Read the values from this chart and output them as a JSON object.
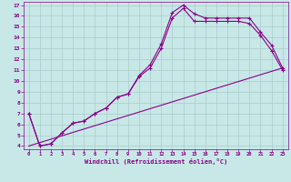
{
  "xlabel": "Windchill (Refroidissement éolien,°C)",
  "bg_color": "#c8e8e8",
  "line_color": "#880088",
  "grid_color": "#a8ccc8",
  "xlim": [
    -0.5,
    23.5
  ],
  "ylim": [
    3.7,
    17.3
  ],
  "xticks": [
    0,
    1,
    2,
    3,
    4,
    5,
    6,
    7,
    8,
    9,
    10,
    11,
    12,
    13,
    14,
    15,
    16,
    17,
    18,
    19,
    20,
    21,
    22,
    23
  ],
  "yticks": [
    4,
    5,
    6,
    7,
    8,
    9,
    10,
    11,
    12,
    13,
    14,
    15,
    16,
    17
  ],
  "line1_x": [
    0,
    1,
    2,
    3,
    4,
    5,
    6,
    7,
    8,
    9,
    10,
    11,
    12,
    13,
    14,
    15,
    16,
    17,
    18,
    19,
    20,
    21,
    22,
    23
  ],
  "line1_y": [
    7.0,
    4.0,
    4.2,
    5.2,
    6.1,
    6.3,
    7.0,
    7.5,
    8.5,
    8.8,
    10.5,
    11.5,
    13.4,
    16.3,
    17.0,
    16.2,
    15.8,
    15.8,
    15.8,
    15.8,
    15.8,
    14.5,
    13.3,
    11.2
  ],
  "line2_x": [
    0,
    1,
    2,
    3,
    4,
    5,
    6,
    7,
    8,
    9,
    10,
    11,
    12,
    13,
    14,
    15,
    16,
    17,
    18,
    19,
    20,
    21,
    22,
    23
  ],
  "line2_y": [
    7.0,
    4.0,
    4.2,
    5.2,
    6.1,
    6.3,
    7.0,
    7.5,
    8.5,
    8.8,
    10.4,
    11.2,
    13.0,
    15.8,
    16.7,
    15.5,
    15.5,
    15.5,
    15.5,
    15.5,
    15.3,
    14.2,
    12.8,
    11.0
  ],
  "line3_x": [
    0,
    23
  ],
  "line3_y": [
    4.0,
    11.2
  ]
}
